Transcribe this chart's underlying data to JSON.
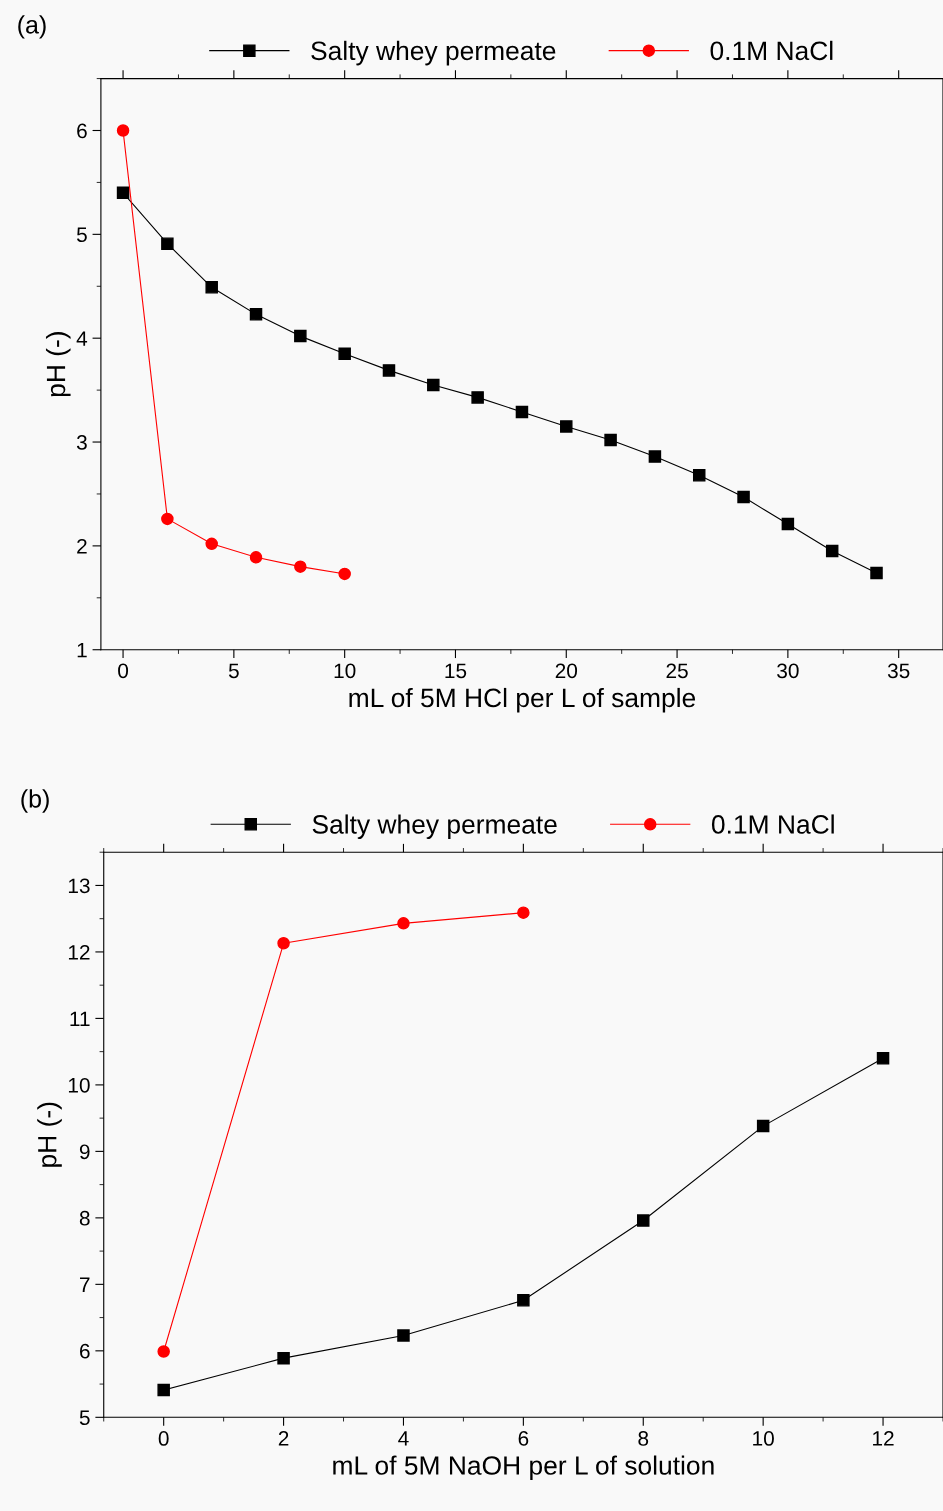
{
  "chart_data": [
    {
      "type": "line",
      "xlabel": "mL of 5M HCl per L of sample",
      "ylabel": "pH (-)",
      "annotations": [
        "(a)"
      ],
      "legend": "top",
      "grid": false,
      "xlim": [
        -1,
        37
      ],
      "xticks": [
        0,
        5,
        10,
        15,
        20,
        25,
        30,
        35
      ],
      "ylim": [
        1,
        6.5
      ],
      "yticks": [
        1,
        2,
        3,
        4,
        5,
        6
      ],
      "series": [
        {
          "name": "Salty whey permeate",
          "color": "#000000",
          "marker": "square",
          "x": [
            0,
            2,
            4,
            6,
            8,
            10,
            12,
            14,
            16,
            18,
            20,
            22,
            24,
            26,
            28,
            30,
            32,
            34
          ],
          "values": [
            5.4,
            4.91,
            4.49,
            4.23,
            4.02,
            3.85,
            3.69,
            3.55,
            3.43,
            3.29,
            3.15,
            3.02,
            2.86,
            2.68,
            2.47,
            2.21,
            1.95,
            1.74
          ]
        },
        {
          "name": "0.1M NaCl",
          "color": "#ff0000",
          "marker": "circle",
          "x": [
            0,
            2,
            4,
            6,
            8,
            10
          ],
          "values": [
            6.0,
            2.26,
            2.02,
            1.89,
            1.8,
            1.73
          ]
        }
      ]
    },
    {
      "type": "line",
      "xlabel": "mL of 5M NaOH per L of solution",
      "ylabel": "pH (-)",
      "annotations": [
        "(b)"
      ],
      "legend": "top",
      "grid": false,
      "xlim": [
        -1,
        13
      ],
      "xticks": [
        0,
        2,
        4,
        6,
        8,
        10,
        12
      ],
      "ylim": [
        5,
        13.5
      ],
      "yticks": [
        5,
        6,
        7,
        8,
        9,
        10,
        11,
        12,
        13
      ],
      "series": [
        {
          "name": "Salty whey permeate",
          "color": "#000000",
          "marker": "square",
          "x": [
            0,
            2,
            4,
            6,
            8,
            10,
            12
          ],
          "values": [
            5.41,
            5.89,
            6.23,
            6.76,
            7.96,
            9.38,
            10.4
          ]
        },
        {
          "name": "0.1M NaCl",
          "color": "#ff0000",
          "marker": "circle",
          "x": [
            0,
            2,
            4,
            6
          ],
          "values": [
            5.99,
            12.13,
            12.43,
            12.59
          ]
        }
      ]
    }
  ]
}
